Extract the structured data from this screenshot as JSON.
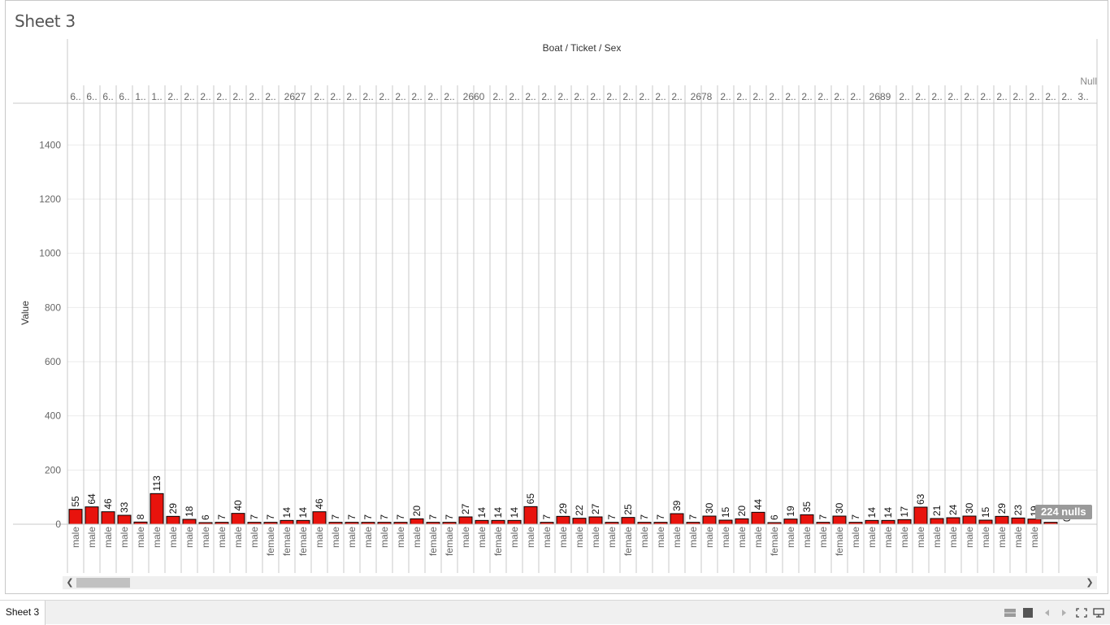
{
  "sheet": {
    "title": "Sheet 3"
  },
  "tabs": [
    {
      "label": "Sheet 3"
    }
  ],
  "null_indicator": {
    "label": "224 nulls"
  },
  "colors": {
    "bar_fill": "#e8130d",
    "bar_stroke": "#000000",
    "grid": "#ebebeb",
    "divider": "#c8c8c8"
  },
  "chart_data": {
    "type": "bar",
    "title": "Boat / Ticket / Sex",
    "ylabel": "Value",
    "ylim": [
      0,
      1500
    ],
    "yticks": [
      0,
      200,
      400,
      600,
      800,
      1000,
      1200,
      1400
    ],
    "grid": true,
    "header_end_label": "Null",
    "ticket_labels": [
      "6..",
      "6..",
      "6..",
      "6..",
      "1..",
      "1..",
      "2..",
      "2..",
      "2..",
      "2..",
      "2..",
      "2..",
      "2..",
      "2627",
      "2..",
      "2..",
      "2..",
      "2..",
      "2..",
      "2..",
      "2..",
      "2..",
      "2..",
      "2660",
      "2..",
      "2..",
      "2..",
      "2..",
      "2..",
      "2..",
      "2..",
      "2..",
      "2..",
      "2..",
      "2..",
      "2..",
      "2678",
      "2..",
      "2..",
      "2..",
      "2..",
      "2..",
      "2..",
      "2..",
      "2..",
      "2..",
      "2689",
      "2..",
      "2..",
      "2..",
      "2..",
      "2..",
      "2..",
      "2..",
      "2..",
      "2..",
      "2..",
      "2..",
      "3..",
      "3..",
      "3.."
    ],
    "sex": [
      "male",
      "male",
      "male",
      "male",
      "male",
      "male",
      "male",
      "male",
      "male",
      "male",
      "male",
      "male",
      "female",
      "female",
      "female",
      "male",
      "male",
      "male",
      "male",
      "male",
      "male",
      "male",
      "female",
      "female",
      "male",
      "male",
      "female",
      "male",
      "male",
      "male",
      "male",
      "male",
      "male",
      "male",
      "female",
      "male",
      "male",
      "male",
      "male",
      "male",
      "male",
      "male",
      "male",
      "female",
      "male",
      "male",
      "male",
      "female",
      "male",
      "male",
      "male",
      "male",
      "male",
      "male",
      "male",
      "male",
      "male",
      "male",
      "male",
      "male"
    ],
    "values": [
      55,
      64,
      46,
      33,
      8,
      113,
      29,
      18,
      6,
      7,
      40,
      7,
      7,
      14,
      14,
      46,
      7,
      7,
      7,
      7,
      7,
      20,
      7,
      7,
      27,
      14,
      14,
      14,
      65,
      7,
      29,
      22,
      27,
      7,
      25,
      7,
      7,
      39,
      7,
      30,
      15,
      20,
      44,
      6,
      19,
      35,
      7,
      30,
      7,
      14,
      14,
      17,
      63,
      21,
      24,
      30,
      15,
      29,
      23,
      19,
      7,
      0,
      null,
      null
    ],
    "value_labels": [
      "55",
      "64",
      "46",
      "33",
      "8",
      "113",
      "29",
      "18",
      "6",
      "7",
      "40",
      "7",
      "7",
      "14",
      "14",
      "46",
      "7",
      "7",
      "7",
      "7",
      "7",
      "20",
      "7",
      "7",
      "27",
      "14",
      "14",
      "14",
      "65",
      "7",
      "29",
      "22",
      "27",
      "7",
      "25",
      "7",
      "7",
      "39",
      "7",
      "30",
      "15",
      "20",
      "44",
      "6",
      "19",
      "35",
      "7",
      "30",
      "7",
      "14",
      "14",
      "17",
      "63",
      "21",
      "24",
      "30",
      "15",
      "29",
      "23",
      "19",
      "7",
      "0",
      "",
      ""
    ]
  }
}
